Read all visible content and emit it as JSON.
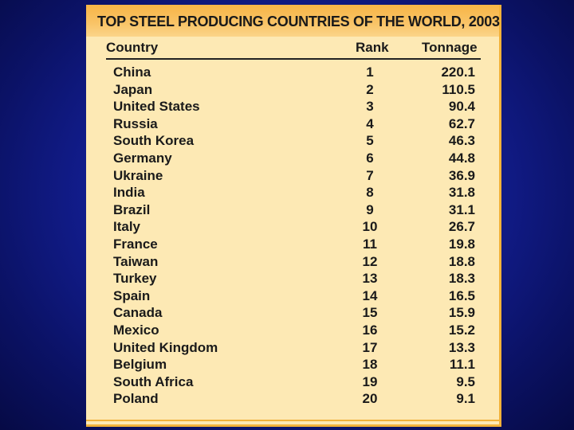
{
  "title": "TOP STEEL PRODUCING COUNTRIES OF THE WORLD, 2003",
  "columns": {
    "country": "Country",
    "rank": "Rank",
    "tonnage": "Tonnage"
  },
  "rows": [
    {
      "country": "China",
      "rank": "1",
      "tonnage": "220.1"
    },
    {
      "country": "Japan",
      "rank": "2",
      "tonnage": "110.5"
    },
    {
      "country": "United States",
      "rank": "3",
      "tonnage": "90.4"
    },
    {
      "country": "Russia",
      "rank": "4",
      "tonnage": "62.7"
    },
    {
      "country": "South Korea",
      "rank": "5",
      "tonnage": "46.3"
    },
    {
      "country": "Germany",
      "rank": "6",
      "tonnage": "44.8"
    },
    {
      "country": "Ukraine",
      "rank": "7",
      "tonnage": "36.9"
    },
    {
      "country": "India",
      "rank": "8",
      "tonnage": "31.8"
    },
    {
      "country": "Brazil",
      "rank": "9",
      "tonnage": "31.1"
    },
    {
      "country": "Italy",
      "rank": "10",
      "tonnage": "26.7"
    },
    {
      "country": "France",
      "rank": "11",
      "tonnage": "19.8"
    },
    {
      "country": "Taiwan",
      "rank": "12",
      "tonnage": "18.8"
    },
    {
      "country": "Turkey",
      "rank": "13",
      "tonnage": "18.3"
    },
    {
      "country": "Spain",
      "rank": "14",
      "tonnage": "16.5"
    },
    {
      "country": "Canada",
      "rank": "15",
      "tonnage": "15.9"
    },
    {
      "country": "Mexico",
      "rank": "16",
      "tonnage": "15.2"
    },
    {
      "country": "United Kingdom",
      "rank": "17",
      "tonnage": "13.3"
    },
    {
      "country": "Belgium",
      "rank": "18",
      "tonnage": "11.1"
    },
    {
      "country": "South Africa",
      "rank": "19",
      "tonnage": "9.5"
    },
    {
      "country": "Poland",
      "rank": "20",
      "tonnage": "9.1"
    }
  ],
  "colors": {
    "background": "#14209a",
    "card": "#fde9b4",
    "title_bar": "#f7b546",
    "accent": "#f2b23a"
  }
}
